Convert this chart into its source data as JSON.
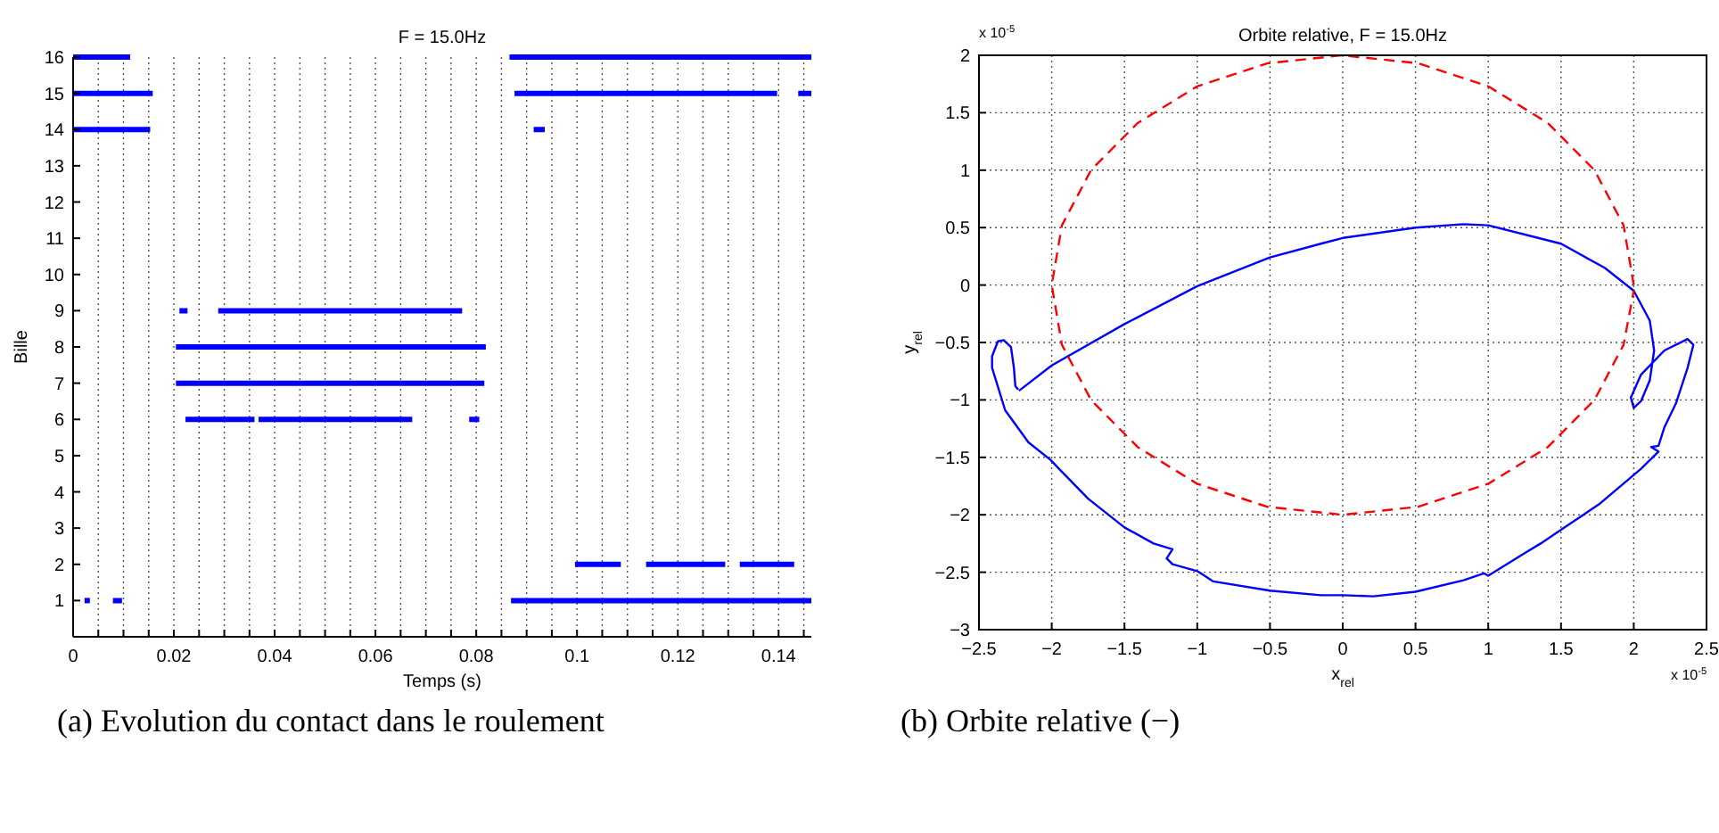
{
  "chart_data": [
    {
      "type": "line",
      "title": "F = 15.0Hz",
      "xlabel": "Temps (s)",
      "ylabel": "Bille",
      "xlim": [
        0,
        0.1465
      ],
      "ylim": [
        0,
        16
      ],
      "xticks": [
        0,
        {
          "value": 0.005,
          "label": null
        },
        {
          "value": 0.01,
          "label": null
        },
        {
          "value": 0.015,
          "label": null
        },
        0.02,
        {
          "value": 0.025,
          "label": null
        },
        {
          "value": 0.03,
          "label": null
        },
        {
          "value": 0.035,
          "label": null
        },
        0.04,
        {
          "value": 0.045,
          "label": null
        },
        {
          "value": 0.05,
          "label": null
        },
        {
          "value": 0.055,
          "label": null
        },
        0.06,
        {
          "value": 0.065,
          "label": null
        },
        {
          "value": 0.07,
          "label": null
        },
        {
          "value": 0.075,
          "label": null
        },
        0.08,
        {
          "value": 0.085,
          "label": null
        },
        {
          "value": 0.09,
          "label": null
        },
        {
          "value": 0.095,
          "label": null
        },
        {
          "value": 0.1,
          "label": "0.1"
        },
        {
          "value": 0.105,
          "label": null
        },
        {
          "value": 0.11,
          "label": null
        },
        {
          "value": 0.115,
          "label": null
        },
        0.12,
        {
          "value": 0.125,
          "label": null
        },
        {
          "value": 0.13,
          "label": null
        },
        {
          "value": 0.135,
          "label": null
        },
        0.14,
        {
          "value": 0.145,
          "label": null
        }
      ],
      "yticks": [
        1,
        2,
        3,
        4,
        5,
        6,
        7,
        8,
        9,
        10,
        11,
        12,
        13,
        14,
        15,
        16
      ],
      "grid": "x",
      "annotations": [
        "(a) Evolution du contact dans le roulement"
      ],
      "series": [
        {
          "color": "#0000ff",
          "type": "scatter",
          "marker": "square",
          "x": [
            0.0028
          ],
          "values": [
            1
          ]
        },
        {
          "color": "#0000ff",
          "x": [
            0.0079,
            0.0097,
            0.05,
            0.0869,
            0.1465
          ],
          "values": [
            1,
            1,
            null,
            1,
            1
          ]
        },
        {
          "color": "#0000ff",
          "x": [
            0.0996,
            0.1087,
            0.11,
            0.1137,
            0.1294,
            0.131,
            0.1323,
            0.1431
          ],
          "values": [
            2,
            2,
            null,
            2,
            2,
            null,
            2,
            2
          ]
        },
        {
          "color": "#0000ff",
          "x": [
            0.0223,
            0.036,
            0.0364,
            0.0368,
            0.0673,
            0.07,
            0.0786,
            0.0806
          ],
          "values": [
            6,
            6,
            null,
            6,
            6,
            null,
            6,
            6
          ]
        },
        {
          "color": "#0000ff",
          "x": [
            0.0204,
            0.0816
          ],
          "values": [
            7,
            7
          ]
        },
        {
          "color": "#0000ff",
          "x": [
            0.0204,
            0.0819
          ],
          "values": [
            8,
            8
          ]
        },
        {
          "color": "#0000ff",
          "x": [
            0.0211,
            0.0227,
            0.025,
            0.0288,
            0.0772
          ],
          "values": [
            9,
            9,
            null,
            9,
            9
          ]
        },
        {
          "color": "#0000ff",
          "x": [
            0,
            0.0153,
            0.05,
            0.0914,
            0.0936
          ],
          "values": [
            14,
            14,
            null,
            14,
            14
          ]
        },
        {
          "color": "#0000ff",
          "x": [
            0,
            0.0158,
            0.05,
            0.0876,
            0.1397,
            0.142,
            0.1439,
            0.1465
          ],
          "values": [
            15,
            15,
            null,
            15,
            15,
            null,
            15,
            15
          ]
        },
        {
          "color": "#0000ff",
          "x": [
            0,
            0.0113,
            0.05,
            0.0866,
            0.1465
          ],
          "values": [
            16,
            16,
            null,
            16,
            16
          ]
        }
      ]
    },
    {
      "type": "line",
      "title": "Orbite relative, F = 15.0Hz",
      "xlabel": "x$_{rel}$",
      "ylabel": "y$_{rel}$",
      "xlim": [
        -2.5,
        2.5
      ],
      "ylim": [
        -3,
        2
      ],
      "xticks": [
        {
          "value": -2.5,
          "label": "−2.5"
        },
        {
          "value": -2,
          "label": "−2"
        },
        {
          "value": -1.5,
          "label": "−1.5"
        },
        {
          "value": -1,
          "label": "−1"
        },
        {
          "value": -0.5,
          "label": "−0.5"
        },
        0,
        0.5,
        1,
        1.5,
        2,
        2.5
      ],
      "yticks": [
        {
          "value": -3,
          "label": "−3"
        },
        {
          "value": -2.5,
          "label": "−2.5"
        },
        {
          "value": -2,
          "label": "−2"
        },
        {
          "value": -1.5,
          "label": "−1.5"
        },
        {
          "value": -1,
          "label": "−1"
        },
        {
          "value": -0.5,
          "label": "−0.5"
        },
        0,
        0.5,
        1,
        1.5,
        2
      ],
      "grid": true,
      "annotations": [
        "x 10$^{-5}$",
        "x 10$^{-5}$",
        "(b) Orbite relative (−)"
      ],
      "series": [
        {
          "color": "#0000ff",
          "line_style": "solid",
          "x": [
            -2.225,
            -2.0,
            -1.5,
            -1.0,
            -0.5,
            -0.15,
            0,
            0.5,
            0.83,
            1.0,
            1.5,
            1.8,
            2.0,
            2.11,
            2.14,
            2.11,
            2.05,
            2.0,
            1.98,
            2.05,
            2.21,
            2.37,
            2.41,
            2.37,
            2.29,
            2.21,
            2.17,
            2.12,
            2.17,
            2.05,
            1.76,
            1.5,
            1.36,
            1.23,
            1.0,
            0.97,
            0.83,
            0.5,
            0.21,
            0,
            -0.15,
            -0.5,
            -0.89,
            -0.95,
            -1.0,
            -1.17,
            -1.21,
            -1.17,
            -1.3,
            -1.5,
            -1.75,
            -1.95,
            -2.01,
            -2.16,
            -2.32,
            -2.41,
            -2.41,
            -2.37,
            -2.33,
            -2.28,
            -2.26,
            -2.25,
            -2.23
          ],
          "values": [
            -0.92,
            -0.7,
            -0.34,
            -0.01,
            0.24,
            0.36,
            0.41,
            0.5,
            0.53,
            0.52,
            0.36,
            0.15,
            -0.05,
            -0.31,
            -0.57,
            -0.83,
            -1.01,
            -1.07,
            -0.98,
            -0.78,
            -0.57,
            -0.47,
            -0.52,
            -0.72,
            -1.03,
            -1.24,
            -1.4,
            -1.41,
            -1.45,
            -1.6,
            -1.91,
            -2.13,
            -2.25,
            -2.35,
            -2.53,
            -2.51,
            -2.57,
            -2.67,
            -2.71,
            -2.7,
            -2.7,
            -2.66,
            -2.58,
            -2.53,
            -2.49,
            -2.43,
            -2.38,
            -2.3,
            -2.25,
            -2.11,
            -1.86,
            -1.6,
            -1.52,
            -1.37,
            -1.09,
            -0.72,
            -0.62,
            -0.49,
            -0.48,
            -0.54,
            -0.72,
            -0.88,
            -0.91
          ]
        },
        {
          "color": "#ff0000",
          "line_style": "dashed",
          "x": [
            2,
            1.93,
            1.73,
            1.41,
            1,
            0.52,
            0,
            -0.52,
            -1,
            -1.41,
            -1.73,
            -1.93,
            -2,
            -1.93,
            -1.73,
            -1.41,
            -1,
            -0.52,
            0,
            0.52,
            1,
            1.41,
            1.73,
            1.93,
            2.0
          ],
          "values": [
            0,
            0.52,
            1,
            1.41,
            1.73,
            1.93,
            2,
            1.93,
            1.73,
            1.41,
            1,
            0.52,
            0,
            -0.52,
            -1,
            -1.41,
            -1.73,
            -1.93,
            -2,
            -1.93,
            -1.73,
            -1.41,
            -1,
            -0.52,
            -0.05
          ]
        }
      ]
    }
  ]
}
